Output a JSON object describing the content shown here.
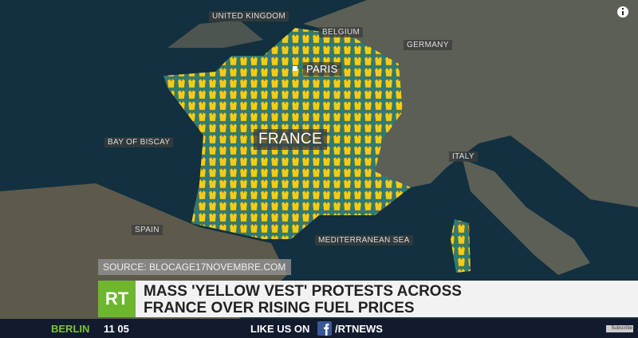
{
  "map": {
    "labels": [
      "UNITED KINGDOM",
      "BELGIUM",
      "GERMANY",
      "PARIS",
      "FRANCE",
      "BAY OF BISCAY",
      "ITALY",
      "SPAIN",
      "MEDITERRANEAN SEA"
    ]
  },
  "source": "SOURCE: BLOCAGE17NOVEMBRE.COM",
  "logo": "RT",
  "headline": [
    "MASS 'YELLOW VEST' PROTESTS ACROSS",
    "FRANCE OVER RISING FUEL PRICES"
  ],
  "ticker": {
    "city": "BERLIN",
    "time": "11 05",
    "social": "LIKE US ON",
    "handle": "/RTNEWS"
  },
  "subscribe": "Subscribe"
}
